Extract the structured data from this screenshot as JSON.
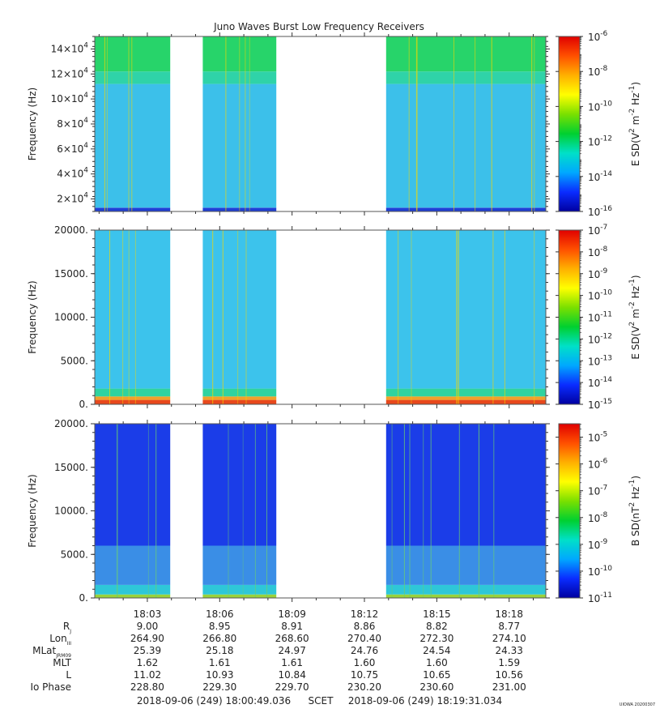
{
  "title": "Juno Waves Burst Low Frequency Receivers",
  "credit": "UIOWA 20200307",
  "chart_data": [
    {
      "type": "heatmap",
      "panel": "top",
      "ylabel": "Frequency (Hz)",
      "ylim": [
        10000,
        150000
      ],
      "y_ticks": [
        {
          "value": 20000,
          "mant": "2×10",
          "exp": "4"
        },
        {
          "value": 40000,
          "mant": "4×10",
          "exp": "4"
        },
        {
          "value": 60000,
          "mant": "6×10",
          "exp": "4"
        },
        {
          "value": 80000,
          "mant": "8×10",
          "exp": "4"
        },
        {
          "value": 100000,
          "mant": "10×10",
          "exp": "4"
        },
        {
          "value": 120000,
          "mant": "12×10",
          "exp": "4"
        },
        {
          "value": 140000,
          "mant": "14×10",
          "exp": "4"
        }
      ],
      "colorbar": {
        "label_parts": [
          "E SD(V",
          "2",
          " m",
          "-2",
          " Hz",
          "-1",
          ")"
        ],
        "scale": "log",
        "min_exp": -16,
        "max_exp": -6,
        "ticks": [
          {
            "mant": "10",
            "exp": "-6"
          },
          {
            "mant": "10",
            "exp": "-8"
          },
          {
            "mant": "10",
            "exp": "-10"
          },
          {
            "mant": "10",
            "exp": "-12"
          },
          {
            "mant": "10",
            "exp": "-14"
          },
          {
            "mant": "10",
            "exp": "-16"
          }
        ]
      },
      "bands": [
        {
          "from": 10000,
          "to": 13000,
          "color": "#1f3fd6"
        },
        {
          "from": 13000,
          "to": 112000,
          "color": "#3cc0ea"
        },
        {
          "from": 112000,
          "to": 122000,
          "color": "#2fd3a8"
        },
        {
          "from": 122000,
          "to": 150000,
          "color": "#27d46a"
        }
      ]
    },
    {
      "type": "heatmap",
      "panel": "middle",
      "ylabel": "Frequency (Hz)",
      "ylim": [
        0,
        20000
      ],
      "y_ticks": [
        {
          "value": 0,
          "mant": "0.",
          "exp": ""
        },
        {
          "value": 5000,
          "mant": "5000.",
          "exp": ""
        },
        {
          "value": 10000,
          "mant": "10000.",
          "exp": ""
        },
        {
          "value": 15000,
          "mant": "15000.",
          "exp": ""
        },
        {
          "value": 20000,
          "mant": "20000.",
          "exp": ""
        }
      ],
      "colorbar": {
        "label_parts": [
          "E SD(V",
          "2",
          " m",
          "-2",
          " Hz",
          "-1",
          ")"
        ],
        "scale": "log",
        "min_exp": -15,
        "max_exp": -7,
        "ticks": [
          {
            "mant": "10",
            "exp": "-7"
          },
          {
            "mant": "10",
            "exp": "-8"
          },
          {
            "mant": "10",
            "exp": "-9"
          },
          {
            "mant": "10",
            "exp": "-10"
          },
          {
            "mant": "10",
            "exp": "-11"
          },
          {
            "mant": "10",
            "exp": "-12"
          },
          {
            "mant": "10",
            "exp": "-13"
          },
          {
            "mant": "10",
            "exp": "-14"
          },
          {
            "mant": "10",
            "exp": "-15"
          }
        ]
      },
      "bands": [
        {
          "from": 0,
          "to": 500,
          "color": "#e8481c"
        },
        {
          "from": 500,
          "to": 900,
          "color": "#f1a12a"
        },
        {
          "from": 900,
          "to": 1800,
          "color": "#2fd3a0"
        },
        {
          "from": 1800,
          "to": 20000,
          "color": "#3cc3ec"
        }
      ]
    },
    {
      "type": "heatmap",
      "panel": "bottom",
      "ylabel": "Frequency (Hz)",
      "ylim": [
        0,
        20000
      ],
      "y_ticks": [
        {
          "value": 0,
          "mant": "0.",
          "exp": ""
        },
        {
          "value": 5000,
          "mant": "5000.",
          "exp": ""
        },
        {
          "value": 10000,
          "mant": "10000.",
          "exp": ""
        },
        {
          "value": 15000,
          "mant": "15000.",
          "exp": ""
        },
        {
          "value": 20000,
          "mant": "20000.",
          "exp": ""
        }
      ],
      "colorbar": {
        "label_parts": [
          "B SD(nT",
          "2",
          " Hz",
          "-1",
          ")"
        ],
        "scale": "log",
        "min_exp": -11,
        "max_exp": -4.5,
        "ticks": [
          {
            "mant": "10",
            "exp": "-5"
          },
          {
            "mant": "10",
            "exp": "-6"
          },
          {
            "mant": "10",
            "exp": "-7"
          },
          {
            "mant": "10",
            "exp": "-8"
          },
          {
            "mant": "10",
            "exp": "-9"
          },
          {
            "mant": "10",
            "exp": "-10"
          },
          {
            "mant": "10",
            "exp": "-11"
          }
        ]
      },
      "bands": [
        {
          "from": 0,
          "to": 400,
          "color": "#9ad23a"
        },
        {
          "from": 400,
          "to": 1500,
          "color": "#2ec7d8"
        },
        {
          "from": 1500,
          "to": 6000,
          "color": "#3a8ee6"
        },
        {
          "from": 6000,
          "to": 20000,
          "color": "#1b3de8"
        }
      ]
    }
  ],
  "time_axis": {
    "ticks": [
      "18:03",
      "18:06",
      "18:09",
      "18:12",
      "18:15",
      "18:18"
    ],
    "tick_minutes": [
      183,
      186,
      189,
      192,
      195,
      198
    ],
    "xlim_minutes": [
      180.82,
      199.52
    ],
    "data_segments": [
      [
        180.82,
        183.95
      ],
      [
        185.3,
        188.35
      ],
      [
        192.9,
        199.52
      ]
    ]
  },
  "ephemeris": {
    "rows": [
      {
        "label": "R",
        "sub": "J",
        "values": [
          "9.00",
          "8.95",
          "8.91",
          "8.86",
          "8.82",
          "8.77"
        ]
      },
      {
        "label": "Lon",
        "sub": "III",
        "values": [
          "264.90",
          "266.80",
          "268.60",
          "270.40",
          "272.30",
          "274.10"
        ]
      },
      {
        "label": "MLat",
        "sub": "JRM09",
        "values": [
          "25.39",
          "25.18",
          "24.97",
          "24.76",
          "24.54",
          "24.33"
        ]
      },
      {
        "label": "MLT",
        "sub": "",
        "values": [
          "1.62",
          "1.61",
          "1.61",
          "1.60",
          "1.60",
          "1.59"
        ]
      },
      {
        "label": "L",
        "sub": "",
        "values": [
          "11.02",
          "10.93",
          "10.84",
          "10.75",
          "10.65",
          "10.56"
        ]
      },
      {
        "label": "Io Phase",
        "sub": "",
        "values": [
          "228.80",
          "229.30",
          "229.70",
          "230.20",
          "230.60",
          "231.00"
        ]
      }
    ]
  },
  "footer": {
    "start": "2018-09-06 (249) 18:00:49.036",
    "scet": "SCET",
    "end": "2018-09-06 (249) 18:19:31.034"
  },
  "colors": {
    "gradient": [
      "#0000a0",
      "#0a2cff",
      "#00a8ff",
      "#00e0c8",
      "#00d030",
      "#7ae000",
      "#ffff00",
      "#ffb000",
      "#ff5000",
      "#e00000"
    ]
  }
}
